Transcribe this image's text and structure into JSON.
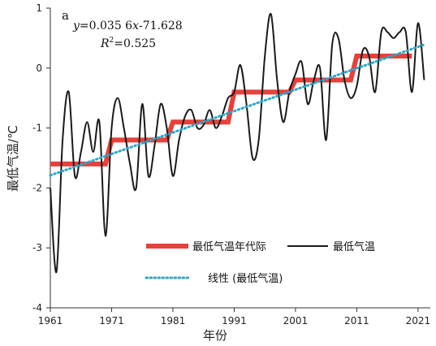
{
  "chart_data": {
    "type": "line",
    "panel_label": "a",
    "equation_left": "y",
    "equation_right": "=0.035 6",
    "equation_var": "x",
    "equation_tail": "-71.628",
    "r2_label": "R",
    "r2_sup": "2",
    "r2_value": "=0.525",
    "xlabel": "年份",
    "ylabel": "最低气温/℃",
    "xlim": [
      1961,
      2023
    ],
    "ylim": [
      -4,
      1
    ],
    "x_ticks": [
      1961,
      1971,
      1981,
      1991,
      2001,
      2011,
      2021
    ],
    "x_tick_labels": [
      "1961",
      "1971",
      "1981",
      "1991",
      "2001",
      "2011",
      "2021"
    ],
    "y_ticks": [
      -4,
      -3,
      -2,
      -1,
      0,
      1
    ],
    "y_tick_labels": [
      "-4",
      "-3",
      "-2",
      "-1",
      "0",
      "1"
    ],
    "legend": {
      "decadal": "最低气温年代际",
      "annual": "最低气温",
      "trend": "线性 (最低气温)"
    },
    "colors": {
      "decadal": "#e8403a",
      "annual": "#1a1a1a",
      "trend": "#2aa7c9"
    },
    "series": [
      {
        "name": "最低气温年代际",
        "style": "step",
        "segments": [
          {
            "x_start": 1961,
            "x_end": 1970,
            "y": -1.6
          },
          {
            "x_start": 1971,
            "x_end": 1980,
            "y": -1.2
          },
          {
            "x_start": 1981,
            "x_end": 1990,
            "y": -0.9
          },
          {
            "x_start": 1991,
            "x_end": 2000,
            "y": -0.4
          },
          {
            "x_start": 2001,
            "x_end": 2010,
            "y": -0.2
          },
          {
            "x_start": 2011,
            "x_end": 2020,
            "y": 0.2
          }
        ]
      },
      {
        "name": "最低气温",
        "style": "line",
        "x": [
          1961,
          1962,
          1963,
          1964,
          1965,
          1966,
          1967,
          1968,
          1969,
          1970,
          1971,
          1972,
          1973,
          1974,
          1975,
          1976,
          1977,
          1978,
          1979,
          1980,
          1981,
          1982,
          1983,
          1984,
          1985,
          1986,
          1987,
          1988,
          1989,
          1990,
          1991,
          1992,
          1993,
          1994,
          1995,
          1996,
          1997,
          1998,
          1999,
          2000,
          2001,
          2002,
          2003,
          2004,
          2005,
          2006,
          2007,
          2008,
          2009,
          2010,
          2011,
          2012,
          2013,
          2014,
          2015,
          2016,
          2017,
          2018,
          2019,
          2020,
          2021,
          2022
        ],
        "y": [
          -2.0,
          -3.4,
          -1.2,
          -0.4,
          -1.8,
          -1.4,
          -0.9,
          -1.4,
          -0.9,
          -2.8,
          -1.0,
          -0.5,
          -1.0,
          -1.6,
          -2.0,
          -0.6,
          -1.8,
          -1.3,
          -0.6,
          -1.0,
          -1.8,
          -1.2,
          -0.8,
          -0.7,
          -1.0,
          -0.95,
          -0.7,
          -1.0,
          -0.8,
          -0.5,
          -0.4,
          0.05,
          -0.6,
          -1.5,
          -1.2,
          0.2,
          0.9,
          -0.2,
          -0.9,
          -0.4,
          -0.1,
          0.1,
          -0.6,
          -0.2,
          0.0,
          -1.2,
          0.4,
          0.5,
          -0.2,
          -0.5,
          -0.3,
          0.3,
          0.2,
          -0.4,
          0.6,
          0.6,
          0.5,
          0.6,
          0.6,
          -0.4,
          0.75,
          -0.2
        ]
      },
      {
        "name": "线性 (最低气温)",
        "style": "dotted",
        "x": [
          1961,
          2022
        ],
        "y": [
          -1.79,
          0.39
        ]
      }
    ]
  }
}
